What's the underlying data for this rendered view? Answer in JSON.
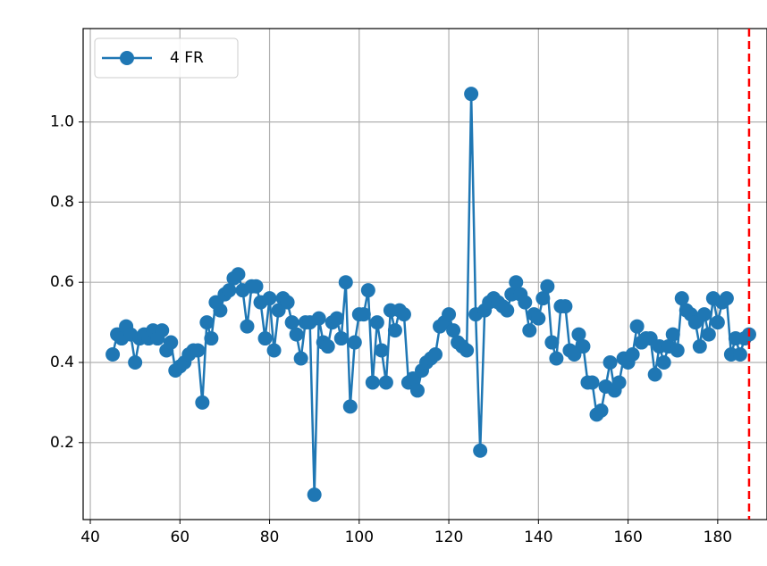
{
  "chart_data": {
    "type": "line",
    "x": [
      45,
      46,
      47,
      48,
      49,
      50,
      51,
      52,
      53,
      54,
      55,
      56,
      57,
      58,
      59,
      60,
      61,
      62,
      63,
      64,
      65,
      66,
      67,
      68,
      69,
      70,
      71,
      72,
      73,
      74,
      75,
      76,
      77,
      78,
      79,
      80,
      81,
      82,
      83,
      84,
      85,
      86,
      87,
      88,
      89,
      90,
      91,
      92,
      93,
      94,
      95,
      96,
      97,
      98,
      99,
      100,
      101,
      102,
      103,
      104,
      105,
      106,
      107,
      108,
      109,
      110,
      111,
      112,
      113,
      114,
      115,
      116,
      117,
      118,
      119,
      120,
      121,
      122,
      123,
      124,
      125,
      126,
      127,
      128,
      129,
      130,
      131,
      132,
      133,
      134,
      135,
      136,
      137,
      138,
      139,
      140,
      141,
      142,
      143,
      144,
      145,
      146,
      147,
      148,
      149,
      150,
      151,
      152,
      153,
      154,
      155,
      156,
      157,
      158,
      159,
      160,
      161,
      162,
      163,
      164,
      165,
      166,
      167,
      168,
      169,
      170,
      171,
      172,
      173,
      174,
      175,
      176,
      177,
      178,
      179,
      180,
      181,
      182,
      183,
      184,
      185,
      186,
      187
    ],
    "series": [
      {
        "name": "4 FR",
        "color": "#1f77b4",
        "values": [
          0.42,
          0.47,
          0.46,
          0.49,
          0.47,
          0.4,
          0.46,
          0.47,
          0.46,
          0.48,
          0.46,
          0.48,
          0.43,
          0.45,
          0.38,
          0.39,
          0.4,
          0.42,
          0.43,
          0.43,
          0.3,
          0.5,
          0.46,
          0.55,
          0.53,
          0.57,
          0.58,
          0.61,
          0.62,
          0.58,
          0.49,
          0.59,
          0.59,
          0.55,
          0.46,
          0.56,
          0.43,
          0.53,
          0.56,
          0.55,
          0.5,
          0.47,
          0.41,
          0.5,
          0.5,
          0.07,
          0.51,
          0.45,
          0.44,
          0.5,
          0.51,
          0.46,
          0.6,
          0.29,
          0.45,
          0.52,
          0.52,
          0.58,
          0.35,
          0.5,
          0.43,
          0.35,
          0.53,
          0.48,
          0.53,
          0.52,
          0.35,
          0.36,
          0.33,
          0.38,
          0.4,
          0.41,
          0.42,
          0.49,
          0.5,
          0.52,
          0.48,
          0.45,
          0.44,
          0.43,
          1.07,
          0.52,
          0.18,
          0.53,
          0.55,
          0.56,
          0.55,
          0.54,
          0.53,
          0.57,
          0.6,
          0.57,
          0.55,
          0.48,
          0.52,
          0.51,
          0.56,
          0.59,
          0.45,
          0.41,
          0.54,
          0.54,
          0.43,
          0.42,
          0.47,
          0.44,
          0.35,
          0.35,
          0.27,
          0.28,
          0.34,
          0.4,
          0.33,
          0.35,
          0.41,
          0.4,
          0.42,
          0.49,
          0.45,
          0.46,
          0.46,
          0.37,
          0.44,
          0.4,
          0.44,
          0.47,
          0.43,
          0.56,
          0.53,
          0.52,
          0.5,
          0.44,
          0.52,
          0.47,
          0.56,
          0.5,
          0.55,
          0.56,
          0.42,
          0.46,
          0.42,
          0.46,
          0.47
        ]
      }
    ],
    "xlim": [
      38.4,
      191
    ],
    "ylim": [
      0.008,
      1.233
    ],
    "xticks": [
      40,
      60,
      80,
      100,
      120,
      140,
      160,
      180
    ],
    "yticks": [
      0.2,
      0.4,
      0.6,
      0.8,
      {
        "value": 1,
        "label": "1.0"
      },
      0.2
    ],
    "vline": 187,
    "vline_color": "#ff0000",
    "grid": true,
    "legend": "upper-left"
  }
}
